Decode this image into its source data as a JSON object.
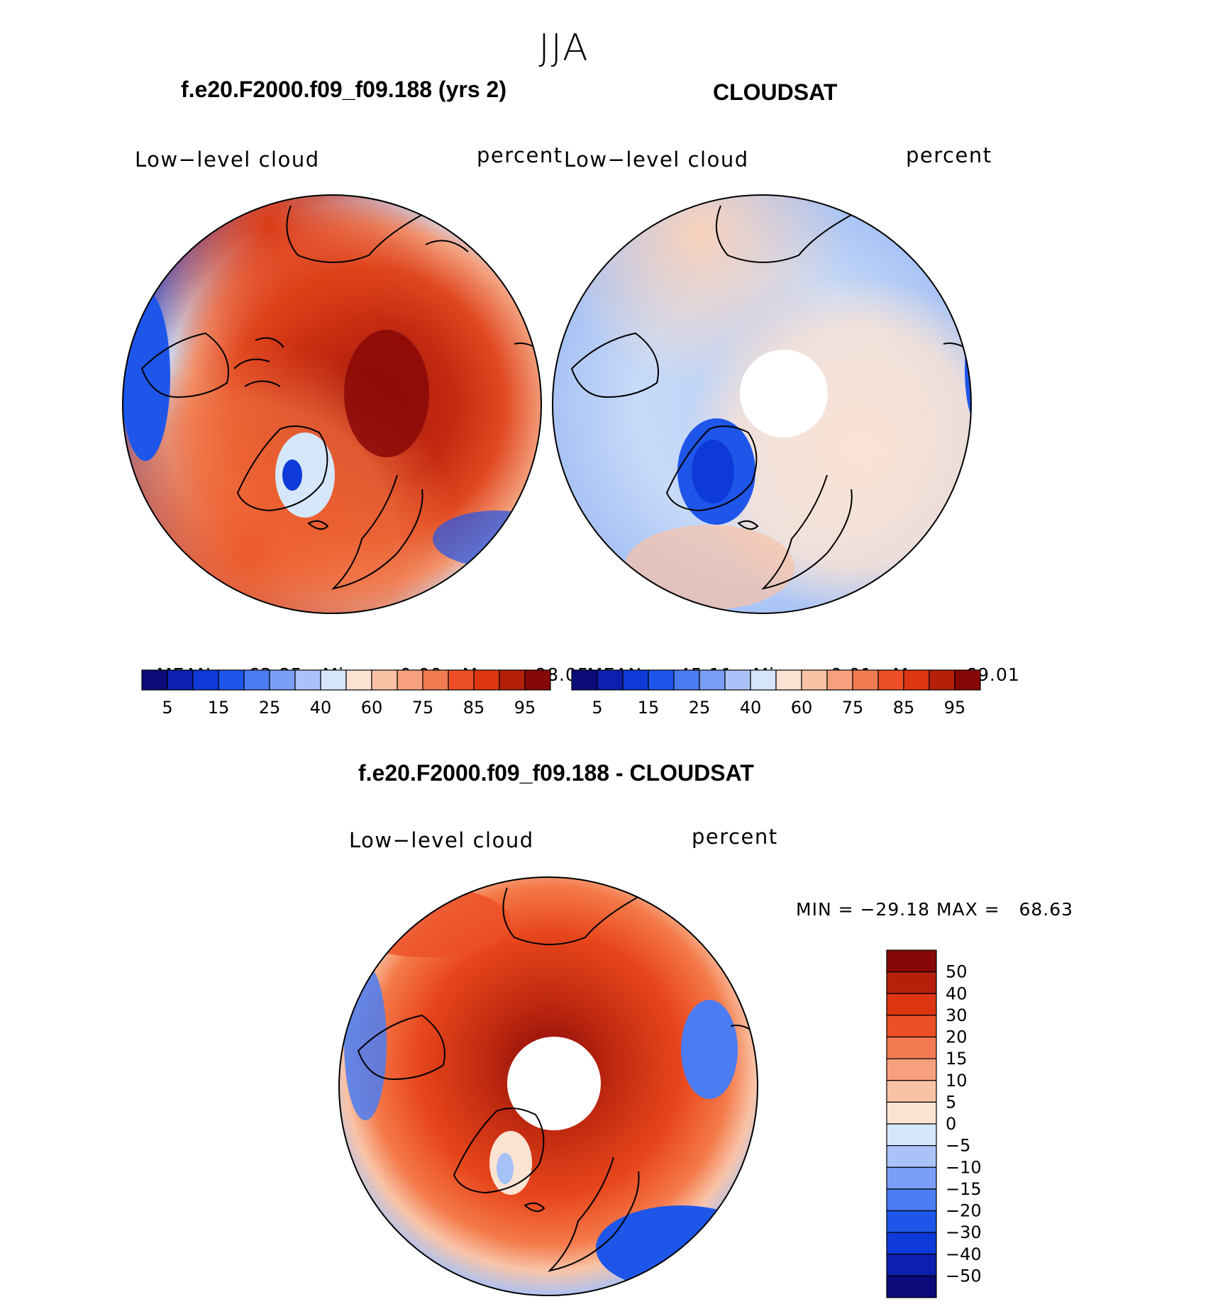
{
  "season": "JJA",
  "panels": [
    {
      "title": "f.e20.F2000.f09_f09.188 (yrs 2)",
      "variable": "Low−level cloud",
      "units": "percent",
      "stats": {
        "mean_label": "MEAN=",
        "mean": "63.85",
        "min_label": "Min=",
        "min": "0.00",
        "max_label": "Max=",
        "max": "98.05"
      }
    },
    {
      "title": "CLOUDSAT",
      "variable": "Low−level cloud",
      "units": "percent",
      "stats": {
        "mean_label": "MEAN=",
        "mean": "45.11",
        "min_label": "Min=",
        "min": "0.01",
        "max_label": "Max=",
        "max": "69.01"
      }
    },
    {
      "title": "f.e20.F2000.f09_f09.188 - CLOUDSAT",
      "variable": "Low−level cloud",
      "units": "percent",
      "stats_line": "MIN = −29.18 MAX =   68.63"
    }
  ],
  "colorbar_abs": {
    "colors": [
      "#0a0a7a",
      "#0c1fae",
      "#0d3ad8",
      "#1e56ea",
      "#4b7cf2",
      "#7a9df5",
      "#a9c2f7",
      "#d6e6fb",
      "#fbe3d4",
      "#f9c2a6",
      "#f7a07e",
      "#f27b52",
      "#ec4f26",
      "#dc3512",
      "#b5200a",
      "#880808"
    ],
    "labels": [
      "5",
      "15",
      "25",
      "40",
      "60",
      "75",
      "85",
      "95"
    ]
  },
  "colorbar_diff": {
    "colors": [
      "#0a0a7a",
      "#0c1fae",
      "#0d3ad8",
      "#1e56ea",
      "#4b7cf2",
      "#7a9df5",
      "#a9c2f7",
      "#d6e6fb",
      "#fbe3d4",
      "#f9c2a6",
      "#f7a07e",
      "#f27b52",
      "#ec4f26",
      "#dc3512",
      "#b5200a",
      "#880808"
    ],
    "labels": [
      "50",
      "40",
      "30",
      "20",
      "15",
      "10",
      "5",
      "0",
      "−5",
      "−10",
      "−15",
      "−20",
      "−30",
      "−40",
      "−50"
    ]
  }
}
